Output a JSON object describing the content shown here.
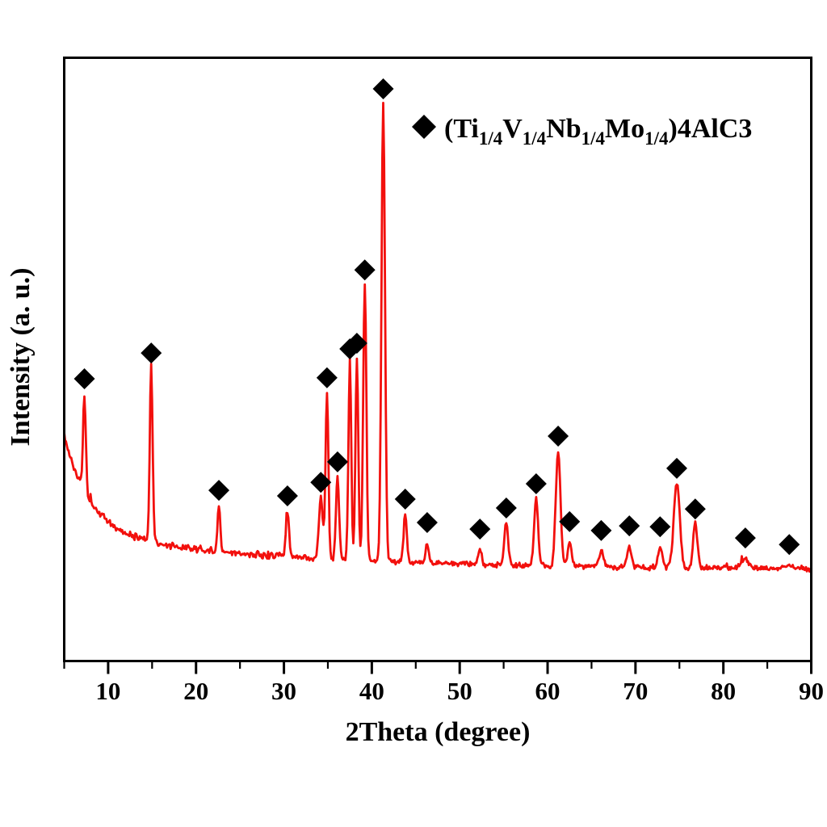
{
  "figure": {
    "background_color": "#ffffff",
    "trace_color": "#f2100d",
    "marker_color": "#000000",
    "frame_color": "#000000"
  },
  "axes": {
    "xlabel": "2Theta (degree)",
    "ylabel": "Intensity (a. u.)",
    "xlim": [
      5,
      90
    ],
    "x_major_ticks": [
      10,
      20,
      30,
      40,
      50,
      60,
      70,
      80,
      90
    ],
    "x_minor_ticks": [
      5,
      15,
      25,
      35,
      45,
      55,
      65,
      75,
      85
    ],
    "y_tick_labels": "none (arbitrary units)"
  },
  "legend": {
    "symbol": "filled-diamond",
    "label_plain": "(Ti1/4V1/4Nb1/4Mo1/4)4AlC3",
    "label_parts": [
      {
        "text": "(Ti"
      },
      {
        "text": "1/4",
        "sub": true
      },
      {
        "text": "V"
      },
      {
        "text": "1/4",
        "sub": true
      },
      {
        "text": "Nb"
      },
      {
        "text": "1/4",
        "sub": true
      },
      {
        "text": "Mo"
      },
      {
        "text": "1/4",
        "sub": true
      },
      {
        "text": ")4AlC3"
      }
    ]
  },
  "chart_data": {
    "type": "line",
    "subtype": "XRD powder diffraction pattern",
    "title": "",
    "xlabel": "2Theta (degree)",
    "ylabel": "Intensity (a. u.)",
    "xlim": [
      5,
      90
    ],
    "x_major_ticks": [
      10,
      20,
      30,
      40,
      50,
      60,
      70,
      80,
      90
    ],
    "grid": false,
    "legend_position": "top-right inside plot",
    "series": [
      {
        "name": "(Ti1/4V1/4Nb1/4Mo1/4)4AlC3",
        "color": "#f2100d",
        "background_profile": "noisy background decaying from high value at 5 deg to flat level at high angle",
        "peak_marker": "black filled diamond above every indexed peak",
        "peaks": [
          {
            "two_theta": 7.3,
            "rel_intensity": 37.9,
            "width": 0.16
          },
          {
            "two_theta": 14.9,
            "rel_intensity": 43.4,
            "width": 0.16
          },
          {
            "two_theta": 22.6,
            "rel_intensity": 14.0,
            "width": 0.16
          },
          {
            "two_theta": 30.4,
            "rel_intensity": 12.8,
            "width": 0.18
          },
          {
            "two_theta": 34.2,
            "rel_intensity": 15.7,
            "width": 0.22
          },
          {
            "two_theta": 34.9,
            "rel_intensity": 38.1,
            "width": 0.16
          },
          {
            "two_theta": 36.1,
            "rel_intensity": 20.1,
            "width": 0.18
          },
          {
            "two_theta": 37.5,
            "rel_intensity": 44.3,
            "width": 0.16
          },
          {
            "two_theta": 38.3,
            "rel_intensity": 45.5,
            "width": 0.16
          },
          {
            "two_theta": 39.2,
            "rel_intensity": 61.2,
            "width": 0.18
          },
          {
            "two_theta": 41.3,
            "rel_intensity": 100.0,
            "width": 0.2
          },
          {
            "two_theta": 43.8,
            "rel_intensity": 12.1,
            "width": 0.18
          },
          {
            "two_theta": 46.3,
            "rel_intensity": 5.7,
            "width": 0.18
          },
          {
            "two_theta": 52.3,
            "rel_intensity": 4.3,
            "width": 0.2
          },
          {
            "two_theta": 55.3,
            "rel_intensity": 10.2,
            "width": 0.22
          },
          {
            "two_theta": 58.7,
            "rel_intensity": 15.4,
            "width": 0.22
          },
          {
            "two_theta": 61.2,
            "rel_intensity": 25.6,
            "width": 0.26
          },
          {
            "two_theta": 62.5,
            "rel_intensity": 5.9,
            "width": 0.22
          },
          {
            "two_theta": 66.1,
            "rel_intensity": 4.0,
            "width": 0.25
          },
          {
            "two_theta": 69.3,
            "rel_intensity": 5.0,
            "width": 0.25
          },
          {
            "two_theta": 72.8,
            "rel_intensity": 4.8,
            "width": 0.25
          },
          {
            "two_theta": 74.7,
            "rel_intensity": 18.7,
            "width": 0.34
          },
          {
            "two_theta": 76.8,
            "rel_intensity": 10.0,
            "width": 0.25
          },
          {
            "two_theta": 82.5,
            "rel_intensity": 2.4,
            "width": 0.4
          },
          {
            "two_theta": 87.5,
            "rel_intensity": 1.0,
            "width": 0.4
          }
        ]
      }
    ]
  }
}
